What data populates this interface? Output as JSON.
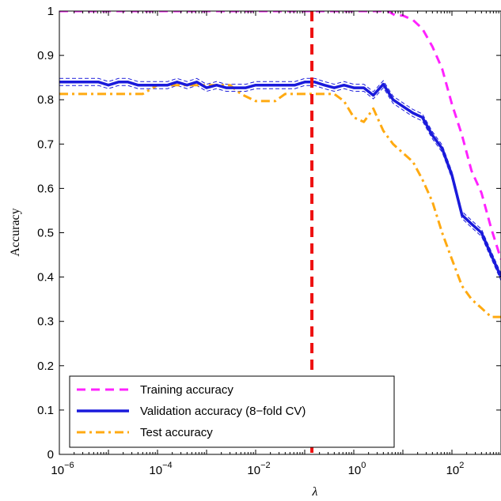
{
  "chart_data": {
    "type": "line",
    "xlabel": "λ",
    "ylabel": "Accuracy",
    "xscale": "log",
    "xlim": [
      1e-06,
      1000
    ],
    "ylim": [
      0,
      1
    ],
    "grid": false,
    "legend_position": "bottom-left",
    "x_ticks": [
      {
        "value": 1e-06,
        "base": "10",
        "exp": "−6"
      },
      {
        "value": 0.0001,
        "base": "10",
        "exp": "−4"
      },
      {
        "value": 0.01,
        "base": "10",
        "exp": "−2"
      },
      {
        "value": 1,
        "base": "10",
        "exp": "0"
      },
      {
        "value": 100,
        "base": "10",
        "exp": "2"
      }
    ],
    "y_ticks": [
      "0",
      "0.1",
      "0.2",
      "0.3",
      "0.4",
      "0.5",
      "0.6",
      "0.7",
      "0.8",
      "0.9",
      "1"
    ],
    "vertical_line": {
      "x": 0.14,
      "color": "#ee1111"
    },
    "series": [
      {
        "name": "Training accuracy",
        "color": "#ff22ff",
        "style": "dashed",
        "x": [
          1e-06,
          0.0001,
          0.01,
          1,
          5,
          7,
          10,
          16,
          25,
          40,
          63,
          100,
          160,
          250,
          400,
          630,
          1000
        ],
        "y": [
          1,
          1,
          1,
          1,
          1,
          0.99,
          0.99,
          0.98,
          0.96,
          0.92,
          0.87,
          0.79,
          0.72,
          0.64,
          0.59,
          0.51,
          0.44
        ]
      },
      {
        "name": "Validation accuracy (8−fold CV)",
        "color": "#1a1adb",
        "style": "solid",
        "x": [
          1e-06,
          1.6e-06,
          2.5e-06,
          4e-06,
          6.3e-06,
          1e-05,
          1.6e-05,
          2.5e-05,
          4e-05,
          6.3e-05,
          0.0001,
          0.00016,
          0.00025,
          0.0004,
          0.00063,
          0.001,
          0.0016,
          0.0025,
          0.004,
          0.0063,
          0.01,
          0.016,
          0.025,
          0.04,
          0.063,
          0.1,
          0.16,
          0.25,
          0.4,
          0.63,
          1,
          1.6,
          2.5,
          4,
          6.3,
          10,
          16,
          25,
          40,
          63,
          100,
          160,
          250,
          400,
          630,
          1000
        ],
        "y": [
          0.84,
          0.84,
          0.84,
          0.84,
          0.84,
          0.833,
          0.84,
          0.84,
          0.833,
          0.833,
          0.833,
          0.833,
          0.84,
          0.833,
          0.84,
          0.827,
          0.833,
          0.827,
          0.827,
          0.827,
          0.833,
          0.833,
          0.833,
          0.833,
          0.833,
          0.84,
          0.84,
          0.833,
          0.827,
          0.833,
          0.827,
          0.827,
          0.81,
          0.835,
          0.8,
          0.785,
          0.77,
          0.76,
          0.72,
          0.69,
          0.63,
          0.54,
          0.52,
          0.5,
          0.45,
          0.4
        ]
      },
      {
        "name": "Test accuracy",
        "color": "#ffaa11",
        "style": "dashdot",
        "x": [
          1e-06,
          2e-06,
          5e-06,
          1e-05,
          2e-05,
          5e-05,
          0.0001,
          0.0002,
          0.0005,
          0.001,
          0.003,
          0.005,
          0.01,
          0.016,
          0.025,
          0.04,
          0.06,
          0.1,
          0.2,
          0.4,
          0.63,
          1,
          1.6,
          2.5,
          4,
          6.3,
          10,
          16,
          25,
          40,
          63,
          100,
          160,
          250,
          400,
          630,
          1000
        ],
        "y": [
          0.813,
          0.813,
          0.813,
          0.813,
          0.813,
          0.813,
          0.833,
          0.833,
          0.833,
          0.833,
          0.833,
          0.813,
          0.797,
          0.797,
          0.797,
          0.813,
          0.813,
          0.813,
          0.813,
          0.813,
          0.797,
          0.76,
          0.75,
          0.78,
          0.73,
          0.7,
          0.68,
          0.66,
          0.62,
          0.57,
          0.5,
          0.44,
          0.38,
          0.35,
          0.33,
          0.31,
          0.31
        ]
      }
    ]
  }
}
